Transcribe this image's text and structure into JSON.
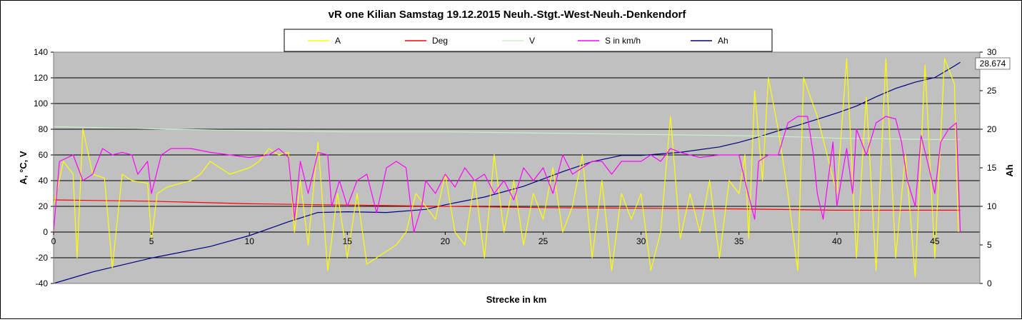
{
  "chart_data": {
    "type": "line",
    "title": "vR one Kilian  Samstag 19.12.2015 Neuh.-Stgt.-West-Neuh.-Denkendorf",
    "xlabel": "Strecke  in km",
    "ylabel": "A, °C, V",
    "y2label": "Ah",
    "xlim": [
      0,
      47.3
    ],
    "ylim": [
      -40,
      140
    ],
    "y2lim": [
      0,
      30
    ],
    "xticks": [
      "0",
      "5",
      "10",
      "15",
      "20",
      "25",
      "30",
      "35",
      "40",
      "45"
    ],
    "yticks": [
      "-40",
      "-20",
      "0",
      "20",
      "40",
      "60",
      "80",
      "100",
      "120",
      "140"
    ],
    "y2ticks": [
      "0",
      "5",
      "10",
      "15",
      "20",
      "25",
      "30"
    ],
    "grid": "horizontal",
    "legend_position": "top",
    "background": "#c0c0c0",
    "end_label": "28.674",
    "series": [
      {
        "name": "A",
        "color": "#ffff00",
        "axis": "left",
        "points": [
          [
            0,
            20
          ],
          [
            0.5,
            55
          ],
          [
            1,
            45
          ],
          [
            1.2,
            -20
          ],
          [
            1.5,
            80
          ],
          [
            2,
            45
          ],
          [
            2.6,
            42
          ],
          [
            3,
            -28
          ],
          [
            3.5,
            45
          ],
          [
            4,
            40
          ],
          [
            4.8,
            38
          ],
          [
            5,
            -5
          ],
          [
            5.3,
            30
          ],
          [
            5.8,
            35
          ],
          [
            6.5,
            38
          ],
          [
            7,
            40
          ],
          [
            7.5,
            45
          ],
          [
            8,
            55
          ],
          [
            9,
            45
          ],
          [
            10,
            50
          ],
          [
            10.5,
            55
          ],
          [
            11,
            65
          ],
          [
            11.5,
            60
          ],
          [
            12,
            62
          ],
          [
            12.3,
            0
          ],
          [
            12.6,
            40
          ],
          [
            13,
            -10
          ],
          [
            13.5,
            70
          ],
          [
            14,
            -30
          ],
          [
            14.5,
            30
          ],
          [
            15,
            -20
          ],
          [
            15.5,
            30
          ],
          [
            16,
            -25
          ],
          [
            17,
            -15
          ],
          [
            17.5,
            -10
          ],
          [
            18,
            0
          ],
          [
            18.5,
            30
          ],
          [
            19,
            20
          ],
          [
            19.5,
            10
          ],
          [
            20,
            45
          ],
          [
            20.5,
            0
          ],
          [
            21,
            -10
          ],
          [
            21.5,
            40
          ],
          [
            22,
            -20
          ],
          [
            22.5,
            60
          ],
          [
            23,
            0
          ],
          [
            23.5,
            40
          ],
          [
            24,
            -10
          ],
          [
            24.5,
            30
          ],
          [
            25,
            10
          ],
          [
            25.5,
            50
          ],
          [
            26,
            0
          ],
          [
            26.5,
            20
          ],
          [
            27,
            60
          ],
          [
            27.5,
            -20
          ],
          [
            28,
            40
          ],
          [
            28.5,
            -30
          ],
          [
            29,
            30
          ],
          [
            29.5,
            10
          ],
          [
            30,
            30
          ],
          [
            30.5,
            -30
          ],
          [
            31,
            0
          ],
          [
            31.5,
            90
          ],
          [
            32,
            -5
          ],
          [
            32.5,
            30
          ],
          [
            33,
            0
          ],
          [
            33.5,
            40
          ],
          [
            34,
            -20
          ],
          [
            34.5,
            40
          ],
          [
            35,
            30
          ],
          [
            35.3,
            60
          ],
          [
            35.5,
            -5
          ],
          [
            35.8,
            110
          ],
          [
            36.2,
            40
          ],
          [
            36.5,
            120
          ],
          [
            37,
            80
          ],
          [
            37.5,
            30
          ],
          [
            38,
            -30
          ],
          [
            38.3,
            120
          ],
          [
            39,
            90
          ],
          [
            39.5,
            60
          ],
          [
            40,
            30
          ],
          [
            40.5,
            135
          ],
          [
            41,
            -20
          ],
          [
            41.5,
            105
          ],
          [
            42,
            -30
          ],
          [
            42.5,
            135
          ],
          [
            43,
            -20
          ],
          [
            43.5,
            60
          ],
          [
            44,
            -35
          ],
          [
            44.5,
            130
          ],
          [
            45,
            -20
          ],
          [
            45.5,
            135
          ],
          [
            46,
            115
          ],
          [
            46.2,
            0
          ]
        ]
      },
      {
        "name": "Deg",
        "color": "#ff0000",
        "axis": "left",
        "points": [
          [
            0,
            25
          ],
          [
            5,
            24
          ],
          [
            10,
            22
          ],
          [
            15,
            21
          ],
          [
            20,
            20
          ],
          [
            25,
            19
          ],
          [
            30,
            18.5
          ],
          [
            35,
            18
          ],
          [
            40,
            17
          ],
          [
            46.3,
            17
          ]
        ]
      },
      {
        "name": "V",
        "color": "#c8f0c8",
        "axis": "left",
        "points": [
          [
            0,
            82
          ],
          [
            3,
            81
          ],
          [
            6,
            80
          ],
          [
            10,
            79
          ],
          [
            15,
            78
          ],
          [
            20,
            78
          ],
          [
            25,
            77
          ],
          [
            30,
            76
          ],
          [
            35,
            75
          ],
          [
            38,
            74
          ],
          [
            40,
            73
          ],
          [
            45,
            72
          ],
          [
            46.3,
            72
          ]
        ]
      },
      {
        "name": "S in km/h",
        "color": "#ff00ff",
        "axis": "left",
        "points": [
          [
            0,
            0
          ],
          [
            0.3,
            55
          ],
          [
            1,
            60
          ],
          [
            1.5,
            40
          ],
          [
            2,
            45
          ],
          [
            2.5,
            65
          ],
          [
            3,
            60
          ],
          [
            3.5,
            62
          ],
          [
            4,
            60
          ],
          [
            4.3,
            45
          ],
          [
            4.8,
            55
          ],
          [
            5,
            30
          ],
          [
            5.5,
            60
          ],
          [
            6,
            65
          ],
          [
            7,
            65
          ],
          [
            8,
            62
          ],
          [
            9,
            60
          ],
          [
            10,
            58
          ],
          [
            11,
            60
          ],
          [
            11.5,
            65
          ],
          [
            12,
            58
          ],
          [
            12.3,
            10
          ],
          [
            12.6,
            55
          ],
          [
            13,
            30
          ],
          [
            13.5,
            62
          ],
          [
            14,
            60
          ],
          [
            14.2,
            20
          ],
          [
            14.6,
            40
          ],
          [
            15,
            20
          ],
          [
            15.5,
            40
          ],
          [
            16,
            45
          ],
          [
            16.5,
            15
          ],
          [
            17,
            50
          ],
          [
            17.5,
            55
          ],
          [
            18,
            50
          ],
          [
            18.4,
            0
          ],
          [
            18.8,
            20
          ],
          [
            19,
            40
          ],
          [
            19.5,
            30
          ],
          [
            20,
            45
          ],
          [
            20.5,
            35
          ],
          [
            21,
            50
          ],
          [
            21.5,
            40
          ],
          [
            22,
            45
          ],
          [
            22.5,
            30
          ],
          [
            23,
            40
          ],
          [
            23.5,
            25
          ],
          [
            24,
            50
          ],
          [
            24.5,
            40
          ],
          [
            25,
            50
          ],
          [
            25.5,
            30
          ],
          [
            26,
            60
          ],
          [
            26.5,
            45
          ],
          [
            27,
            50
          ],
          [
            27.5,
            55
          ],
          [
            28,
            55
          ],
          [
            28.5,
            45
          ],
          [
            29,
            55
          ],
          [
            30,
            55
          ],
          [
            30.5,
            60
          ],
          [
            31,
            55
          ],
          [
            31.5,
            65
          ],
          [
            32,
            62
          ],
          [
            32.5,
            60
          ],
          [
            33,
            58
          ],
          [
            34,
            60
          ],
          [
            35,
            60
          ],
          [
            35.3,
            40
          ],
          [
            35.8,
            10
          ],
          [
            36,
            55
          ],
          [
            36.5,
            60
          ],
          [
            37,
            60
          ],
          [
            37.5,
            85
          ],
          [
            38,
            90
          ],
          [
            38.5,
            90
          ],
          [
            38.8,
            60
          ],
          [
            39,
            30
          ],
          [
            39.3,
            10
          ],
          [
            39.8,
            70
          ],
          [
            40,
            20
          ],
          [
            40.5,
            65
          ],
          [
            40.8,
            30
          ],
          [
            41,
            80
          ],
          [
            41.5,
            60
          ],
          [
            42,
            85
          ],
          [
            42.5,
            90
          ],
          [
            43,
            88
          ],
          [
            43.3,
            70
          ],
          [
            43.6,
            40
          ],
          [
            44,
            20
          ],
          [
            44.3,
            75
          ],
          [
            44.7,
            50
          ],
          [
            45,
            30
          ],
          [
            45.3,
            70
          ],
          [
            45.7,
            80
          ],
          [
            46.1,
            85
          ],
          [
            46.3,
            0
          ]
        ]
      },
      {
        "name": "Ah",
        "color": "#000080",
        "axis": "right",
        "points": [
          [
            0,
            0
          ],
          [
            2,
            1.5
          ],
          [
            5,
            3.3
          ],
          [
            8,
            4.8
          ],
          [
            10,
            6.2
          ],
          [
            12,
            8
          ],
          [
            13.5,
            9.2
          ],
          [
            15,
            9.3
          ],
          [
            17,
            9.2
          ],
          [
            19,
            9.6
          ],
          [
            20,
            10.2
          ],
          [
            22,
            11.2
          ],
          [
            24,
            12.6
          ],
          [
            26,
            14.5
          ],
          [
            27.5,
            15.8
          ],
          [
            29,
            16.6
          ],
          [
            30,
            16.6
          ],
          [
            32,
            17
          ],
          [
            34,
            17.7
          ],
          [
            35,
            18.3
          ],
          [
            36,
            19
          ],
          [
            37,
            19.8
          ],
          [
            38,
            20.5
          ],
          [
            39,
            21.3
          ],
          [
            40,
            22.1
          ],
          [
            41,
            23
          ],
          [
            42,
            24.2
          ],
          [
            43,
            25.3
          ],
          [
            44,
            26.1
          ],
          [
            45,
            26.7
          ],
          [
            46,
            28.2
          ],
          [
            46.3,
            28.674
          ]
        ]
      }
    ]
  }
}
